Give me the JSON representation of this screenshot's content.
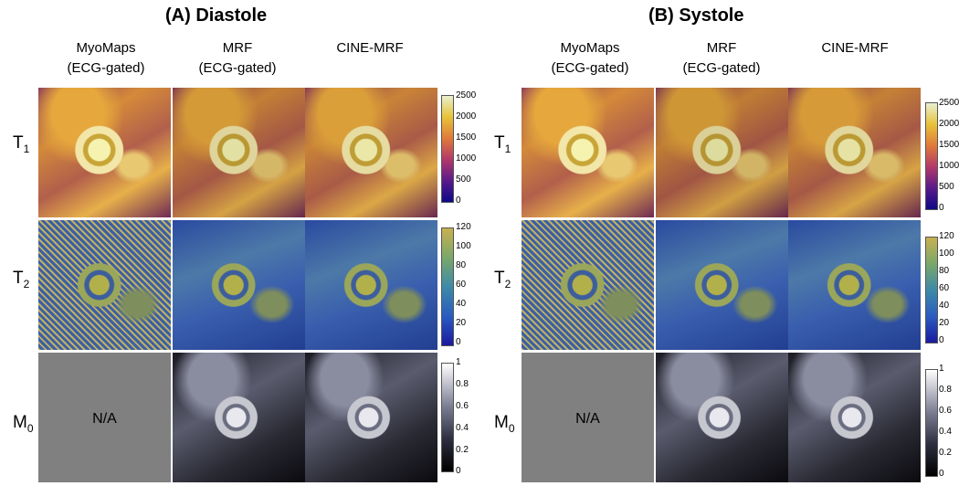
{
  "panels": [
    {
      "title": "(A) Diastole"
    },
    {
      "title": "(B) Systole"
    }
  ],
  "columns": [
    {
      "line1": "MyoMaps",
      "line2": "(ECG-gated)"
    },
    {
      "line1": "MRF",
      "line2": "(ECG-gated)"
    },
    {
      "line1": "",
      "line2": "CINE-MRF"
    }
  ],
  "rows": [
    {
      "base": "T",
      "sub": "1"
    },
    {
      "base": "T",
      "sub": "2"
    },
    {
      "base": "M",
      "sub": "0"
    }
  ],
  "na_label": "N/A",
  "colorbars": {
    "t1": [
      "2500",
      "2000",
      "1500",
      "1000",
      "500",
      "0"
    ],
    "t2": [
      "120",
      "100",
      "80",
      "60",
      "40",
      "20",
      "0"
    ],
    "m0": [
      "1",
      "0.8",
      "0.6",
      "0.4",
      "0.2",
      "0"
    ]
  },
  "colormaps": {
    "t1": [
      "#0d0887",
      "#b3396a",
      "#e8c238",
      "#e8f0d0"
    ],
    "t2": [
      "#1a1aa0",
      "#3d8aa8",
      "#c8b050"
    ],
    "m0": [
      "#000000",
      "#7a7c92",
      "#ffffff"
    ]
  }
}
